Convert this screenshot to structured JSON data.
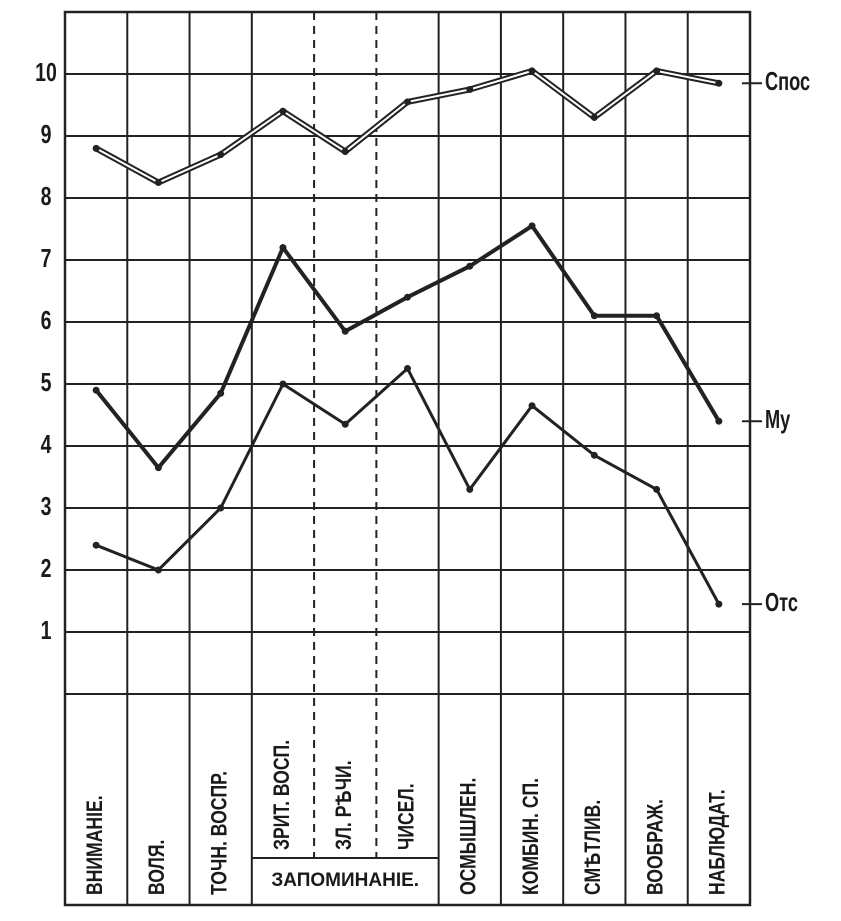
{
  "chart_data": {
    "type": "line",
    "categories": [
      "ВНИМАНІЕ.",
      "ВОЛЯ.",
      "ТОЧН. ВОСПР.",
      "ЗРИТ. ВОСП.",
      "ЗЛ. РѢЧИ.",
      "ЧИСЕЛ.",
      "ОСМЫШЛЕН.",
      "КОМБИН. СП.",
      "СМѢТЛИВ.",
      "ВООБРАЖ.",
      "НАБЛЮДАТ."
    ],
    "group_label": "ЗАПОМИНАНІЕ.",
    "series": [
      {
        "name": "Спос",
        "color": "#222222",
        "values": [
          8.8,
          8.25,
          8.7,
          9.4,
          8.75,
          9.55,
          9.75,
          10.05,
          9.3,
          10.05,
          9.85
        ]
      },
      {
        "name": "Му",
        "color": "#222222",
        "values": [
          4.9,
          3.65,
          4.85,
          7.2,
          5.85,
          6.4,
          6.9,
          7.55,
          6.1,
          6.1,
          4.4
        ]
      },
      {
        "name": "Отс",
        "color": "#222222",
        "values": [
          2.4,
          2.0,
          3.0,
          5.0,
          4.35,
          5.25,
          3.3,
          4.65,
          3.85,
          3.3,
          1.45
        ]
      }
    ],
    "ylim": [
      0,
      11
    ],
    "yticks": [
      1,
      2,
      3,
      4,
      5,
      6,
      7,
      8,
      9,
      10
    ],
    "grid": true
  }
}
